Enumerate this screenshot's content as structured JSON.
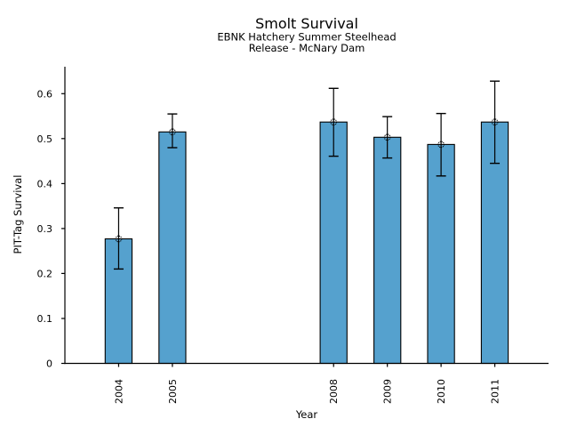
{
  "chart_data": {
    "type": "bar",
    "title": "Smolt Survival",
    "subtitle1": "EBNK Hatchery Summer Steelhead",
    "subtitle2": "Release - McNary Dam",
    "xlabel": "Year",
    "ylabel": "PIT-Tag Survival",
    "categories": [
      2004,
      2005,
      2008,
      2009,
      2010,
      2011
    ],
    "values": [
      0.277,
      0.515,
      0.537,
      0.503,
      0.487,
      0.537
    ],
    "error_low": [
      0.21,
      0.48,
      0.461,
      0.457,
      0.417,
      0.445
    ],
    "error_high": [
      0.346,
      0.555,
      0.612,
      0.549,
      0.556,
      0.628
    ],
    "xlim": [
      2003,
      2012
    ],
    "ylim": [
      0,
      0.66
    ],
    "yticks": [
      0,
      0.1,
      0.2,
      0.3,
      0.4,
      0.5,
      0.6
    ],
    "ytick_labels": [
      "0",
      "0.1",
      "0.2",
      "0.3",
      "0.4",
      "0.5",
      "0.6"
    ],
    "bar_width_years": 0.5,
    "grid": false,
    "legend": "none",
    "colors": {
      "bar_fill": "#55a1ce",
      "bar_edge": "#000000",
      "error": "#000000",
      "marker_edge": "#000000",
      "axis": "#000000",
      "background": "#ffffff"
    }
  }
}
